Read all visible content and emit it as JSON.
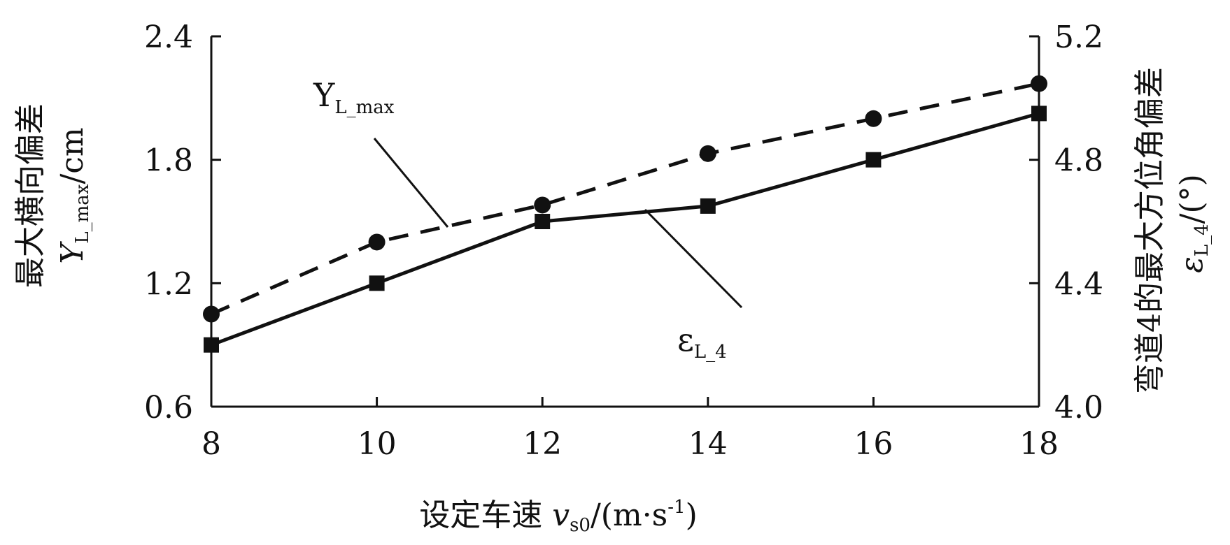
{
  "chart_data": {
    "type": "line",
    "x": [
      8,
      10,
      12,
      14,
      16,
      18
    ],
    "xlim": [
      8,
      18
    ],
    "xticks": [
      "8",
      "10",
      "12",
      "14",
      "16",
      "18"
    ],
    "xlabel": {
      "main": "设定车速 ",
      "var": "v",
      "sub": "s0",
      "unit": "/(m·s",
      "sup": "-1",
      "close": ")"
    },
    "ylabel_left": {
      "line1": "最大横向偏差",
      "var": "Y",
      "sub": "L_max",
      "unit": "/cm"
    },
    "ylabel_right": {
      "line1": "弯道4的最大方位角偏差",
      "var": "ε",
      "sub": "L_4",
      "unit": "/(°)"
    },
    "ylim_left": [
      0.6,
      2.4
    ],
    "yticks_left": [
      "0.6",
      "1.2",
      "1.8",
      "2.4"
    ],
    "ylim_right": [
      4.0,
      5.2
    ],
    "yticks_right": [
      "4.0",
      "4.4",
      "4.8",
      "5.2"
    ],
    "series": [
      {
        "name": "Y",
        "name_sub": "L_max",
        "axis": "left",
        "style": "dashed",
        "marker": "circle",
        "values": [
          1.05,
          1.4,
          1.58,
          1.83,
          2.0,
          2.17
        ]
      },
      {
        "name": "ε",
        "name_sub": "L_4",
        "axis": "right",
        "style": "solid",
        "marker": "square",
        "values": [
          4.2,
          4.4,
          4.6,
          4.65,
          4.8,
          4.95
        ]
      }
    ],
    "grid": false,
    "legend": "inline annotations with leader lines"
  }
}
